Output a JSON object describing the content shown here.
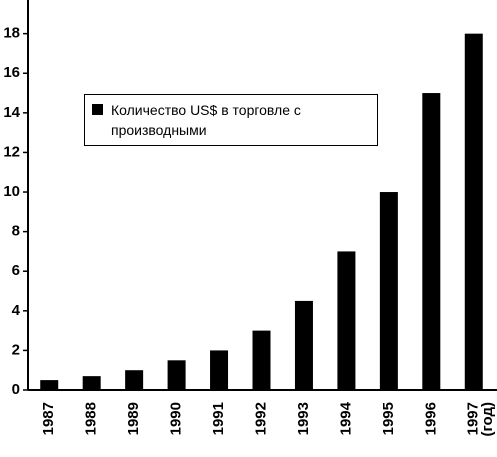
{
  "chart_data": {
    "type": "bar",
    "categories": [
      "1987",
      "1988",
      "1989",
      "1990",
      "1991",
      "1992",
      "1993",
      "1994",
      "1995",
      "1996",
      "1997"
    ],
    "series": [
      {
        "name": "Количество US$ в торговле с производными",
        "color": "#000000",
        "values": [
          0.5,
          0.7,
          1,
          1.5,
          2,
          3,
          4.5,
          7,
          10,
          15,
          18
        ]
      }
    ],
    "x_label": "(год)",
    "ylim": [
      0,
      19.7
    ],
    "yticks": [
      0,
      2,
      4,
      6,
      8,
      10,
      12,
      14,
      16,
      18
    ],
    "grid": false
  }
}
